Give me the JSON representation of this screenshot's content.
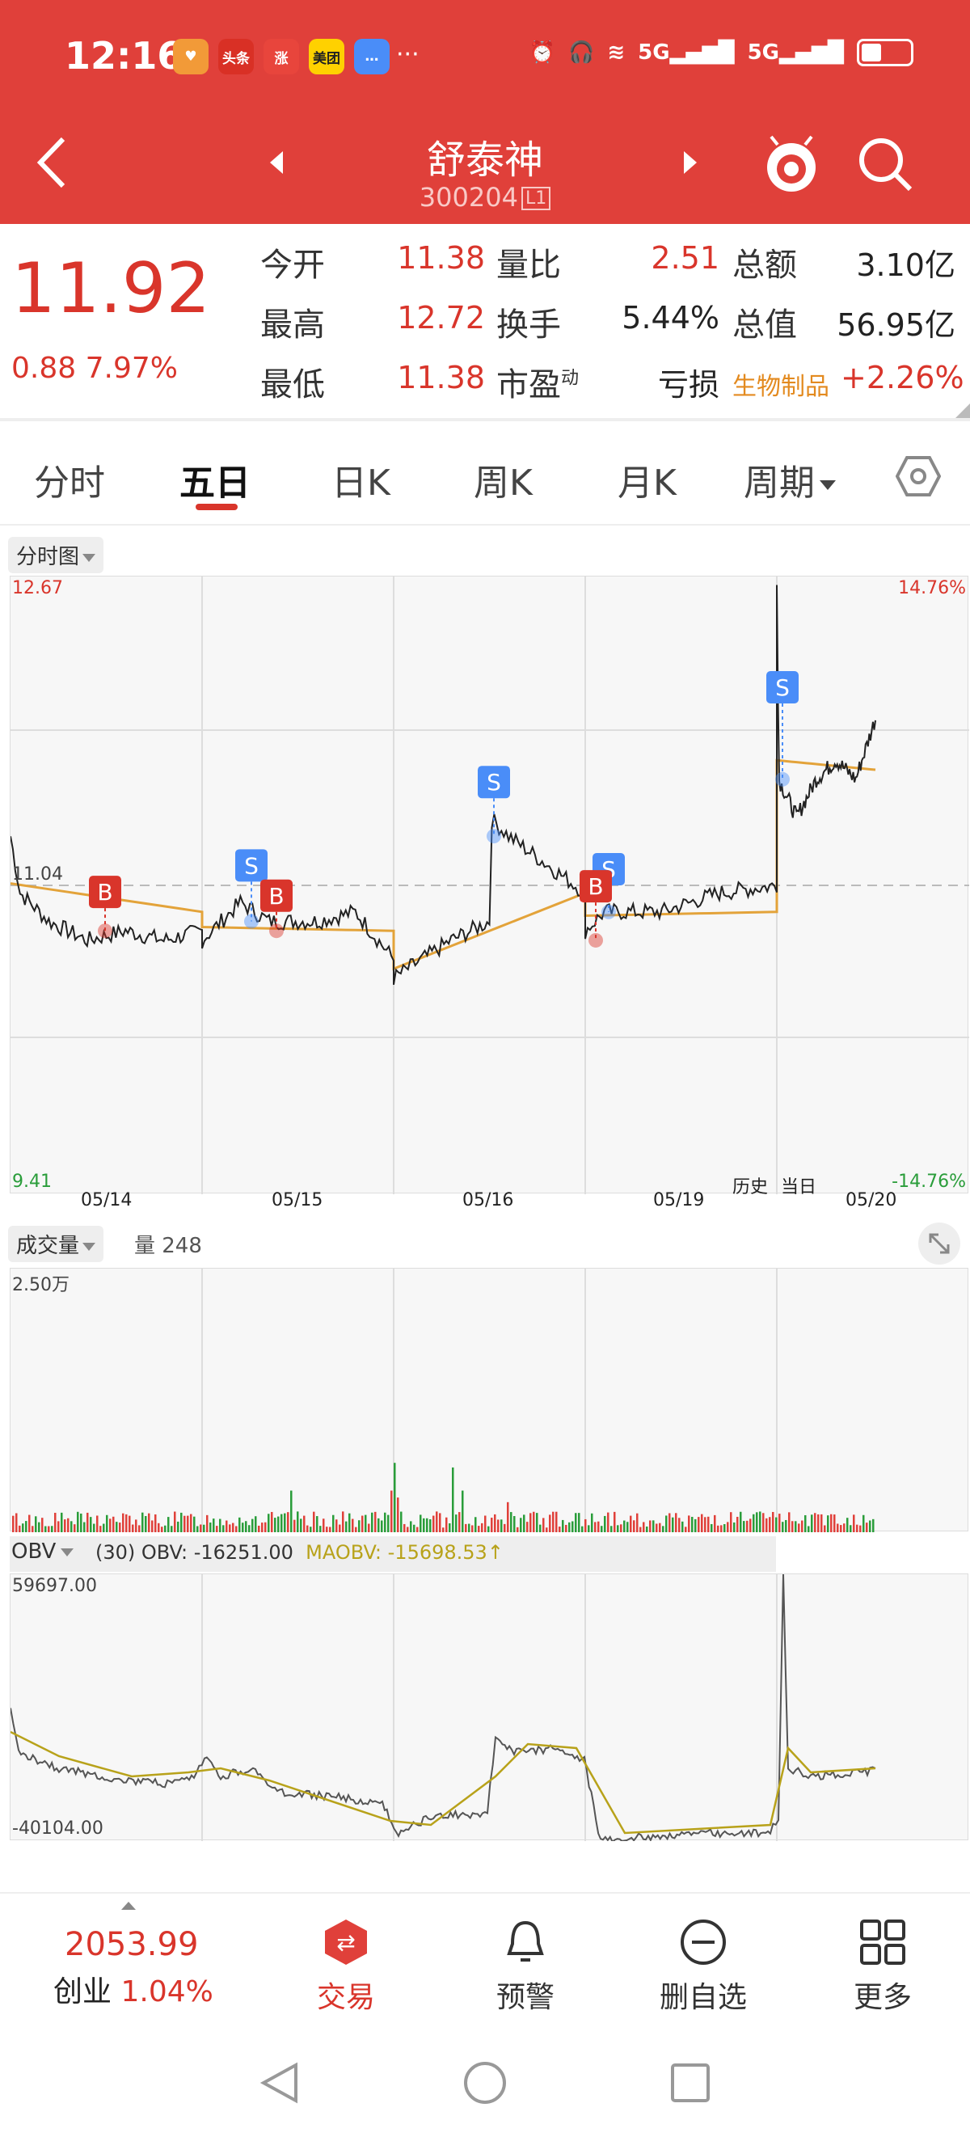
{
  "status_bar": {
    "time": "12:16",
    "apps": [
      {
        "label": "",
        "color": "#f29a38",
        "icon": "heart-app-icon"
      },
      {
        "label": "头条",
        "color": "#d93025",
        "icon": "toutiao-app-icon"
      },
      {
        "label": "涨",
        "color": "#e8453c",
        "icon": "zhang-app-icon"
      },
      {
        "label": "美团",
        "color": "#ffd100",
        "icon": "meituan-app-icon"
      },
      {
        "label": "",
        "color": "#4a8df8",
        "icon": "message-app-icon"
      }
    ],
    "more": "···",
    "net1": "5G",
    "net2": "5G"
  },
  "nav": {
    "title": "舒泰神",
    "code": "300204",
    "level": "L1"
  },
  "quote": {
    "price": "11.92",
    "change": "0.88",
    "change_pct": "7.97%",
    "fields": [
      {
        "label": "今开",
        "value": "11.38"
      },
      {
        "label": "最高",
        "value": "12.72"
      },
      {
        "label": "最低",
        "value": "11.38"
      },
      {
        "label": "量比",
        "value": "2.51"
      },
      {
        "label": "换手",
        "value": "5.44%"
      },
      {
        "label": "市盈",
        "value": "亏损",
        "sup": "动"
      },
      {
        "label": "总额",
        "value": "3.10亿"
      },
      {
        "label": "总值",
        "value": "56.95亿"
      }
    ],
    "sector_name": "生物制品",
    "sector_change": "+2.26%"
  },
  "tabs": [
    "分时",
    "五日",
    "日K",
    "周K",
    "月K",
    "周期"
  ],
  "price_chart": {
    "selector": "分时图",
    "y_max": "12.67",
    "y_ref": "11.04",
    "y_min": "9.41",
    "pct_max": "14.76%",
    "pct_min": "-14.76%",
    "dates": [
      "05/14",
      "05/15",
      "05/16",
      "05/19",
      "05/20"
    ],
    "history_label": "历史",
    "today_label": "当日",
    "markers": [
      "B",
      "S",
      "B",
      "S",
      "S",
      "B",
      "S"
    ]
  },
  "volume_chart": {
    "selector": "成交量",
    "volume_label": "量 248",
    "y_max": "2.50万"
  },
  "obv_chart": {
    "selector": "OBV",
    "params": "(30)",
    "obv": "OBV: -16251.00",
    "maobv": "MAOBV: -15698.53↑",
    "y_max": "59697.00",
    "y_min": "-40104.00"
  },
  "chart_data": {
    "type": "line",
    "x": [
      "05/14",
      "05/15",
      "05/16",
      "05/19",
      "05/20"
    ],
    "series": [
      {
        "values": [
          11.04,
          10.9,
          11.3,
          11.05,
          11.92
        ]
      }
    ],
    "ylim": [
      9.41,
      12.67
    ]
  },
  "bottom_nav": {
    "index_value": "2053.99",
    "index_name": "创业",
    "index_change": "1.04%",
    "trade": "交易",
    "alert": "预警",
    "remove_watch": "删自选",
    "more": "更多"
  }
}
